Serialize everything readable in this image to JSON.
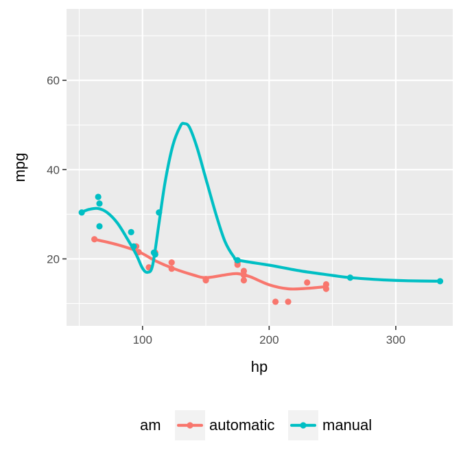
{
  "chart_data": {
    "type": "scatter",
    "title": "",
    "xlabel": "hp",
    "ylabel": "mpg",
    "xlim": [
      40,
      345
    ],
    "ylim": [
      5,
      76
    ],
    "x_ticks": [
      100,
      200,
      300
    ],
    "y_ticks": [
      20,
      40,
      60
    ],
    "grid": true,
    "legend": {
      "title": "am",
      "position": "bottom"
    },
    "series": [
      {
        "name": "automatic",
        "color": "#f8766d",
        "points": [
          [
            62,
            24.4
          ],
          [
            95,
            22.8
          ],
          [
            97,
            21.5
          ],
          [
            105,
            18.1
          ],
          [
            110,
            21.4
          ],
          [
            123,
            19.2
          ],
          [
            123,
            17.8
          ],
          [
            150,
            15.5
          ],
          [
            150,
            15.2
          ],
          [
            175,
            18.7
          ],
          [
            175,
            19.2
          ],
          [
            180,
            16.4
          ],
          [
            180,
            17.3
          ],
          [
            180,
            15.2
          ],
          [
            205,
            10.4
          ],
          [
            215,
            10.4
          ],
          [
            230,
            14.7
          ],
          [
            245,
            14.3
          ],
          [
            245,
            13.3
          ]
        ],
        "smooth": [
          [
            62,
            24.4
          ],
          [
            80,
            23.2
          ],
          [
            97,
            21.6
          ],
          [
            110,
            19.6
          ],
          [
            123,
            18.0
          ],
          [
            140,
            16.4
          ],
          [
            150,
            15.8
          ],
          [
            165,
            16.4
          ],
          [
            175,
            16.7
          ],
          [
            185,
            16.0
          ],
          [
            200,
            14.2
          ],
          [
            215,
            13.3
          ],
          [
            230,
            13.4
          ],
          [
            245,
            13.8
          ]
        ]
      },
      {
        "name": "manual",
        "color": "#00bfc4",
        "points": [
          [
            52,
            30.4
          ],
          [
            65,
            33.9
          ],
          [
            66,
            32.4
          ],
          [
            66,
            27.3
          ],
          [
            91,
            26.0
          ],
          [
            93,
            22.8
          ],
          [
            109,
            21.4
          ],
          [
            110,
            21.0
          ],
          [
            113,
            30.4
          ],
          [
            175,
            19.7
          ],
          [
            264,
            15.8
          ],
          [
            335,
            15.0
          ]
        ],
        "smooth": [
          [
            52,
            30.5
          ],
          [
            58,
            31.1
          ],
          [
            65,
            31.3
          ],
          [
            72,
            30.4
          ],
          [
            80,
            28.1
          ],
          [
            88,
            24.5
          ],
          [
            95,
            21.0
          ],
          [
            100,
            17.9
          ],
          [
            104,
            17.0
          ],
          [
            108,
            18.6
          ],
          [
            113,
            28.0
          ],
          [
            118,
            37.5
          ],
          [
            124,
            45.5
          ],
          [
            130,
            49.8
          ],
          [
            133,
            50.3
          ],
          [
            137,
            49.5
          ],
          [
            143,
            45.0
          ],
          [
            150,
            38.0
          ],
          [
            158,
            30.0
          ],
          [
            165,
            24.0
          ],
          [
            172,
            20.5
          ],
          [
            176,
            19.7
          ],
          [
            200,
            18.6
          ],
          [
            225,
            17.3
          ],
          [
            250,
            16.3
          ],
          [
            264,
            15.8
          ],
          [
            290,
            15.3
          ],
          [
            310,
            15.1
          ],
          [
            335,
            15.0
          ]
        ]
      }
    ]
  }
}
